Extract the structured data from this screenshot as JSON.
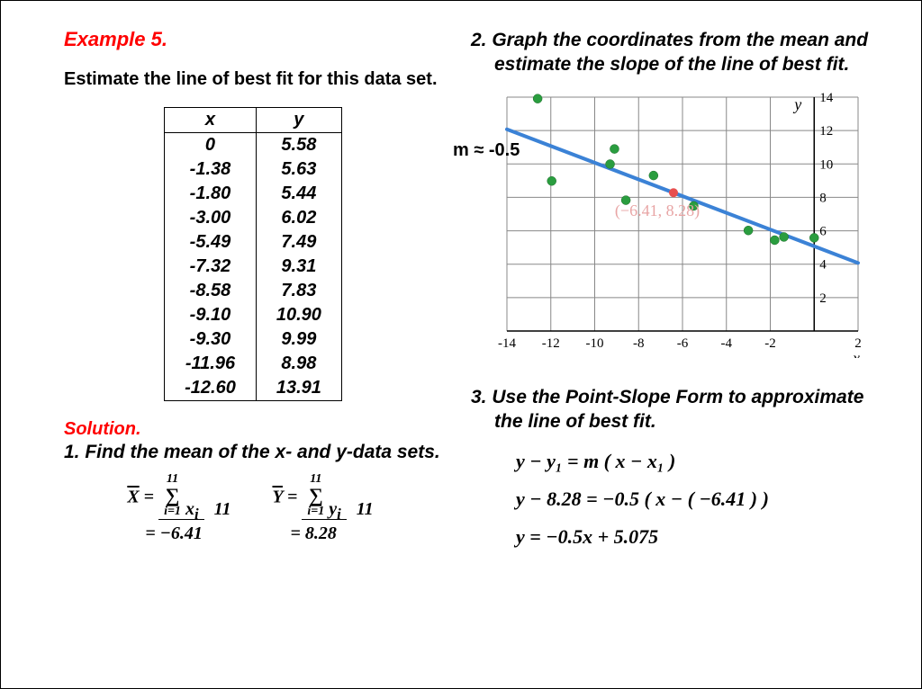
{
  "title": "Example 5.",
  "prompt": "Estimate the line of best fit for this data set.",
  "table": {
    "headers": [
      "x",
      "y"
    ],
    "rows": [
      [
        "0",
        "5.58"
      ],
      [
        "-1.38",
        "5.63"
      ],
      [
        "-1.80",
        "5.44"
      ],
      [
        "-3.00",
        "6.02"
      ],
      [
        "-5.49",
        "7.49"
      ],
      [
        "-7.32",
        "9.31"
      ],
      [
        "-8.58",
        "7.83"
      ],
      [
        "-9.10",
        "10.90"
      ],
      [
        "-9.30",
        "9.99"
      ],
      [
        "-11.96",
        "8.98"
      ],
      [
        "-12.60",
        "13.91"
      ]
    ]
  },
  "solution_label": "Solution.",
  "step1": {
    "text": "1. Find the mean of the x- and y-data sets.",
    "n": "11",
    "xbar": "−6.41",
    "ybar": "8.28"
  },
  "step2": {
    "text": "2. Graph the coordinates from the mean and estimate the slope of the line of best fit.",
    "slope_label": "m ≈ -0.5",
    "mean_point_label": "(−6.41, 8.28)"
  },
  "step3": {
    "text": "3. Use the Point-Slope Form to approximate the line of best fit.",
    "eq1": "y − y₁ = m ( x − x₁ )",
    "eq2": "y − 8.28 = −0.5 ( x − ( −6.41 ) )",
    "eq3": "y = −0.5x + 5.075"
  },
  "chart": {
    "xmin": -14,
    "xmax": 2,
    "xstep": 2,
    "ymin": 0,
    "ymax": 14,
    "ystep": 2,
    "grid_color": "#888888",
    "axis_color": "#000000",
    "line_color": "#3b82d6",
    "point_color": "#2a9d3f",
    "mean_color": "#e84e4e",
    "mean_label_color": "#e8a5a5",
    "background": "#ffffff",
    "points": [
      [
        0,
        5.58
      ],
      [
        -1.38,
        5.63
      ],
      [
        -1.8,
        5.44
      ],
      [
        -3.0,
        6.02
      ],
      [
        -5.49,
        7.49
      ],
      [
        -7.32,
        9.31
      ],
      [
        -8.58,
        7.83
      ],
      [
        -9.1,
        10.9
      ],
      [
        -9.3,
        9.99
      ],
      [
        -11.96,
        8.98
      ],
      [
        -12.6,
        13.91
      ]
    ],
    "mean_point": [
      -6.41,
      8.28
    ],
    "line": {
      "m": -0.5,
      "b": 5.075
    },
    "label_fontsize": 15,
    "point_radius": 5
  }
}
